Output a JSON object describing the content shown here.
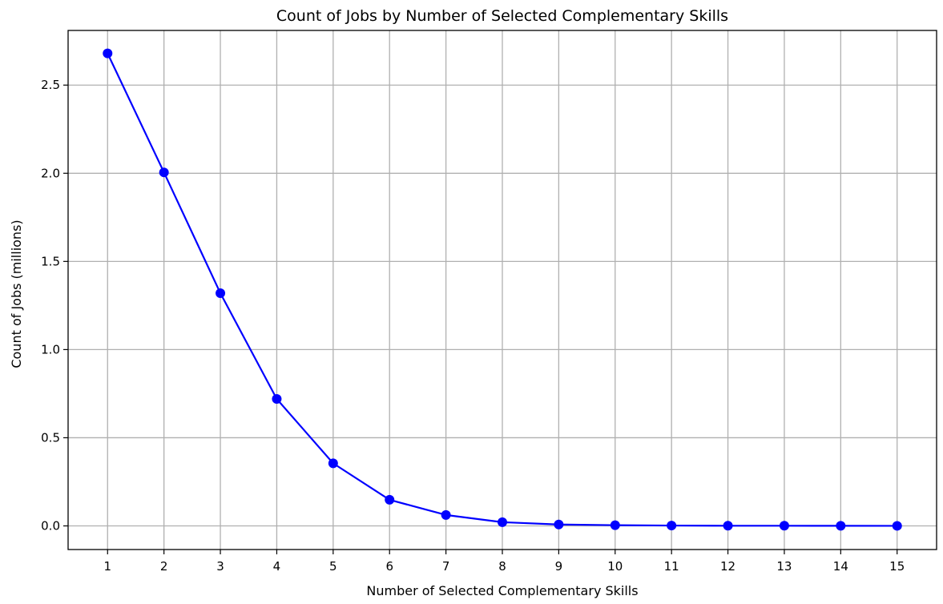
{
  "chart_data": {
    "type": "line",
    "title": "Count of Jobs by Number of Selected Complementary Skills",
    "xlabel": "Number of Selected Complementary Skills",
    "ylabel": "Count of Jobs (millions)",
    "x": [
      1,
      2,
      3,
      4,
      5,
      6,
      7,
      8,
      9,
      10,
      11,
      12,
      13,
      14,
      15
    ],
    "series": [
      {
        "values": [
          2.68,
          2.005,
          1.32,
          0.72,
          0.355,
          0.148,
          0.062,
          0.021,
          0.008,
          0.004,
          0.002,
          0.001,
          0.001,
          0.0005,
          0.0003
        ]
      }
    ],
    "xticks": [
      "1",
      "2",
      "3",
      "4",
      "5",
      "6",
      "7",
      "8",
      "9",
      "10",
      "11",
      "12",
      "13",
      "14",
      "15"
    ],
    "yticks": [
      "0.0",
      "0.5",
      "1.0",
      "1.5",
      "2.0",
      "2.5"
    ],
    "ytick_values": [
      0,
      0.5,
      1.0,
      1.5,
      2.0,
      2.5
    ],
    "xlim": [
      0.3,
      15.7
    ],
    "ylim": [
      -0.134,
      2.81
    ],
    "grid": true,
    "color": "#0000ff",
    "marker": "circle"
  }
}
